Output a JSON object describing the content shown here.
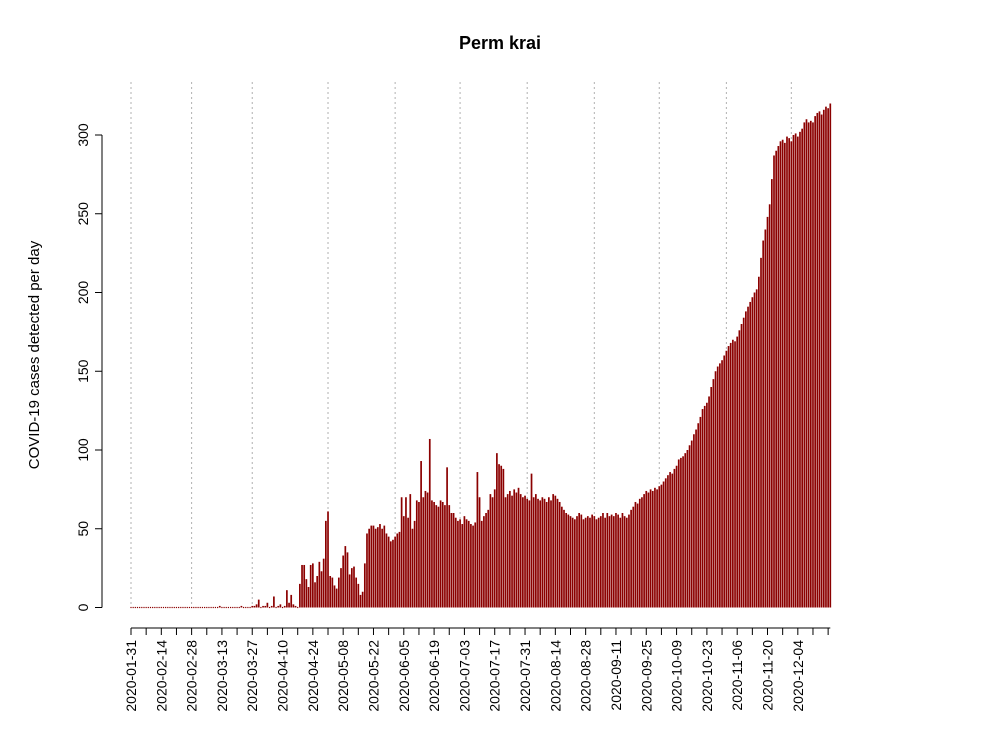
{
  "chart_data": {
    "type": "bar",
    "title": "Perm krai",
    "xlabel": "",
    "ylabel": "COVID-19 cases detected per day",
    "ylim": [
      0,
      330
    ],
    "yticks": [
      0,
      50,
      100,
      150,
      200,
      250,
      300
    ],
    "x_start_date": "2020-01-31",
    "x_end_date": "2020-12-13",
    "xtick_labels": [
      "2020-01-31",
      "2020-02-14",
      "2020-02-28",
      "2020-03-13",
      "2020-03-27",
      "2020-04-10",
      "2020-04-24",
      "2020-05-08",
      "2020-05-22",
      "2020-06-05",
      "2020-06-19",
      "2020-07-03",
      "2020-07-17",
      "2020-07-31",
      "2020-08-14",
      "2020-08-28",
      "2020-09-11",
      "2020-09-25",
      "2020-10-09",
      "2020-10-23",
      "2020-11-06",
      "2020-11-20",
      "2020-12-04"
    ],
    "vertical_gridlines": [
      "2020-01-31",
      "2020-02-28",
      "2020-03-27",
      "2020-05-01",
      "2020-06-01",
      "2020-07-01",
      "2020-08-01",
      "2020-09-01",
      "2020-10-01",
      "2020-11-01",
      "2020-12-01"
    ],
    "grid": "vertical dotted at month starts",
    "bar_color": "#8b0000",
    "values": [
      0,
      0,
      0,
      0,
      0,
      0,
      0,
      0,
      0,
      0,
      0,
      0,
      0,
      0,
      0,
      0,
      0,
      0,
      0,
      0,
      0,
      0,
      0,
      0,
      0,
      0,
      0,
      0,
      0,
      0,
      0,
      0,
      0,
      0,
      0,
      0,
      0,
      0,
      0,
      0,
      0,
      1,
      0,
      0,
      0,
      0,
      0,
      0,
      0,
      0,
      0,
      1,
      0,
      0,
      0,
      0,
      1,
      1,
      2,
      5,
      0,
      1,
      1,
      3,
      0,
      1,
      7,
      0,
      1,
      2,
      0,
      1,
      11,
      3,
      8,
      2,
      1,
      0,
      15,
      27,
      27,
      18,
      13,
      27,
      28,
      16,
      20,
      29,
      23,
      31,
      55,
      61,
      20,
      19,
      14,
      12,
      19,
      25,
      33,
      39,
      35,
      21,
      25,
      26,
      19,
      15,
      8,
      10,
      28,
      47,
      50,
      52,
      52,
      50,
      51,
      53,
      50,
      52,
      47,
      45,
      42,
      43,
      45,
      47,
      48,
      70,
      58,
      70,
      57,
      72,
      50,
      55,
      68,
      67,
      93,
      70,
      74,
      73,
      107,
      68,
      67,
      65,
      64,
      68,
      67,
      65,
      89,
      65,
      60,
      60,
      57,
      55,
      56,
      53,
      58,
      56,
      55,
      53,
      52,
      54,
      86,
      70,
      55,
      58,
      60,
      62,
      72,
      70,
      75,
      98,
      91,
      90,
      88,
      70,
      72,
      74,
      71,
      75,
      73,
      76,
      72,
      70,
      71,
      69,
      68,
      85,
      70,
      72,
      69,
      68,
      70,
      69,
      67,
      70,
      68,
      72,
      71,
      69,
      67,
      64,
      62,
      60,
      59,
      58,
      57,
      56,
      58,
      60,
      59,
      56,
      57,
      58,
      57,
      59,
      58,
      56,
      57,
      58,
      60,
      57,
      60,
      58,
      59,
      58,
      60,
      59,
      57,
      60,
      58,
      57,
      59,
      62,
      64,
      67,
      66,
      69,
      70,
      72,
      74,
      73,
      75,
      74,
      76,
      75,
      77,
      78,
      80,
      82,
      84,
      86,
      85,
      88,
      90,
      94,
      95,
      96,
      98,
      100,
      103,
      106,
      110,
      113,
      117,
      121,
      126,
      128,
      130,
      134,
      140,
      145,
      150,
      153,
      155,
      157,
      160,
      163,
      166,
      168,
      170,
      169,
      172,
      176,
      180,
      184,
      188,
      191,
      194,
      197,
      200,
      202,
      210,
      222,
      233,
      240,
      248,
      256,
      272,
      287,
      290,
      293,
      296,
      297,
      295,
      299,
      298,
      296,
      300,
      301,
      299,
      302,
      304,
      308,
      310,
      308,
      309,
      308,
      312,
      314,
      315,
      313,
      316,
      318,
      317,
      320
    ]
  }
}
